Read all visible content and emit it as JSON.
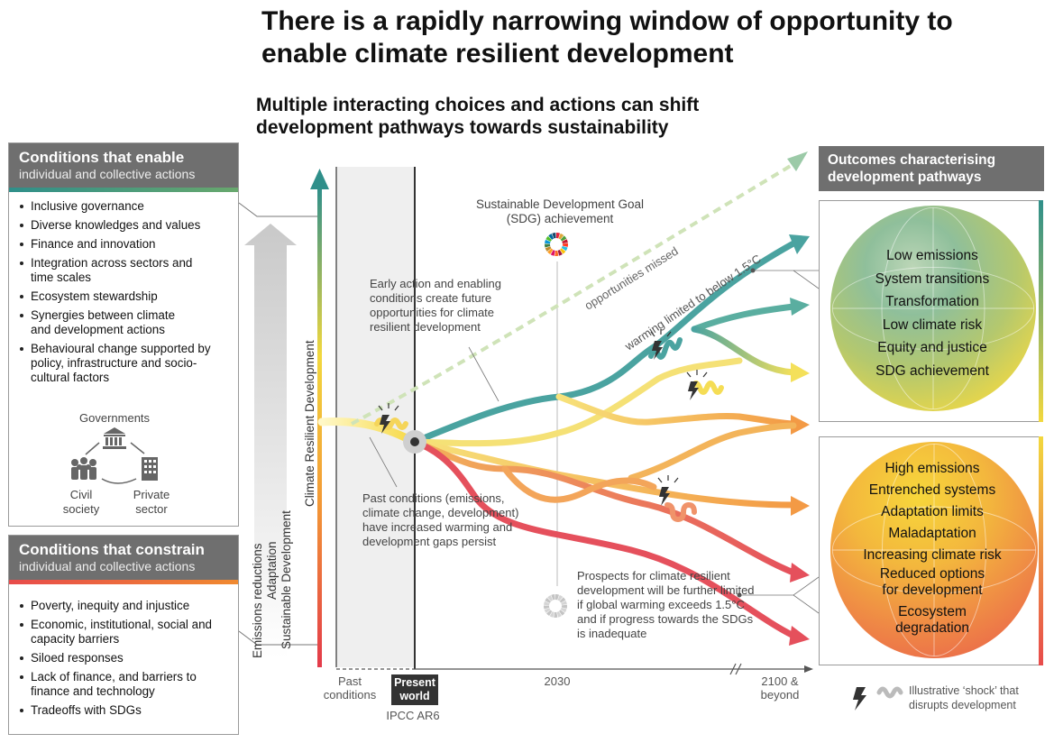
{
  "title": "There is a rapidly narrowing window of opportunity to enable climate resilient development",
  "subtitle": "Multiple interacting choices and actions can shift development pathways towards sustainability",
  "enable_panel": {
    "heading": "Conditions that enable",
    "subheading": "individual and collective actions",
    "items": [
      "Inclusive governance",
      "Diverse knowledges and values",
      "Finance and innovation",
      "Integration across sectors and time scales",
      "Ecosystem stewardship",
      "Synergies between climate and development actions",
      "Behavioural change supported by policy, infrastructure and socio-cultural factors"
    ],
    "actors": {
      "governments": "Governments",
      "civil_society": "Civil society",
      "private_sector": "Private sector"
    }
  },
  "constrain_panel": {
    "heading": "Conditions that constrain",
    "subheading": "individual and collective actions",
    "items": [
      "Poverty, inequity and injustice",
      "Economic, institutional, social and capacity barriers",
      "Siloed responses",
      "Lack of finance, and barriers to finance and technology",
      "Tradeoffs with SDGs"
    ]
  },
  "vertical_labels": {
    "emissions": "Emissions reductions",
    "adaptation": "Adaptation",
    "sustainable": "Sustainable Development",
    "axis": "Climate Resilient Development"
  },
  "outcomes": {
    "heading": "Outcomes characterising development pathways",
    "good": [
      "Low emissions",
      "System transitions",
      "Transformation",
      "Low climate risk",
      "Equity and justice",
      "SDG achievement"
    ],
    "bad": [
      "High emissions",
      "Entrenched systems",
      "Adaptation limits",
      "Maladaptation",
      "Increasing climate risk",
      "Reduced options for development",
      "Ecosystem degradation"
    ]
  },
  "annotations": {
    "sdg": "Sustainable Development Goal (SDG) achievement",
    "early_action": "Early action and enabling conditions create future opportunities for climate resilient development",
    "opportunities_missed": "opportunities missed",
    "warming_limited": "warming limited to below 1.5°C",
    "past_conditions": "Past conditions (emissions, climate change, development) have increased warming and development gaps persist",
    "prospects": "Prospects for climate resilient development will be further limited if global warming exceeds 1.5°C and if progress towards the SDGs is inadequate"
  },
  "x_axis": {
    "past": "Past conditions",
    "present": "Present world",
    "ipcc": "IPCC AR6",
    "y2030": "2030",
    "y2100": "2100 & beyond"
  },
  "legend": {
    "shock": "Illustrative ‘shock’ that disrupts development"
  },
  "colors": {
    "header_gray": "#6f6f6f",
    "teal": "#4aa3a0",
    "yellow": "#f7d84a",
    "orange": "#f39a45",
    "red": "#e5505c"
  }
}
